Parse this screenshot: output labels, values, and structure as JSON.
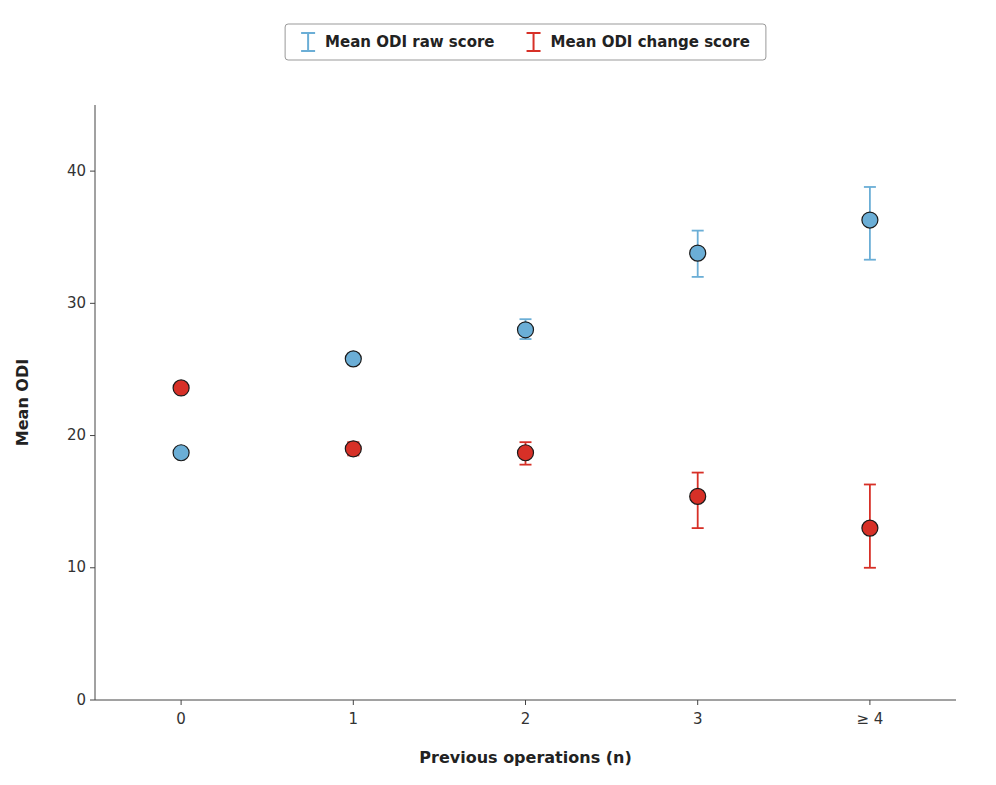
{
  "chart_data": {
    "type": "errorbar",
    "categories": [
      "0",
      "1",
      "2",
      "3",
      "≥ 4"
    ],
    "series": [
      {
        "name": "Mean ODI raw score",
        "color": "#6baed6",
        "values": [
          18.7,
          25.8,
          28.0,
          33.8,
          36.3
        ],
        "ci_low": [
          18.7,
          25.4,
          27.3,
          32.0,
          33.3
        ],
        "ci_high": [
          18.7,
          26.2,
          28.8,
          35.5,
          38.8
        ]
      },
      {
        "name": "Mean ODI change score",
        "color": "#d73027",
        "values": [
          23.6,
          19.0,
          18.7,
          15.4,
          13.0
        ],
        "ci_low": [
          23.6,
          18.5,
          17.8,
          13.0,
          10.0
        ],
        "ci_high": [
          23.6,
          19.5,
          19.5,
          17.2,
          16.3
        ]
      }
    ],
    "xlabel": "Previous operations (n)",
    "ylabel": "Mean ODI",
    "ylim": [
      0,
      45
    ],
    "yticks": [
      0,
      10,
      20,
      30,
      40
    ],
    "grid": false,
    "legend": "top",
    "marker": "circle"
  }
}
